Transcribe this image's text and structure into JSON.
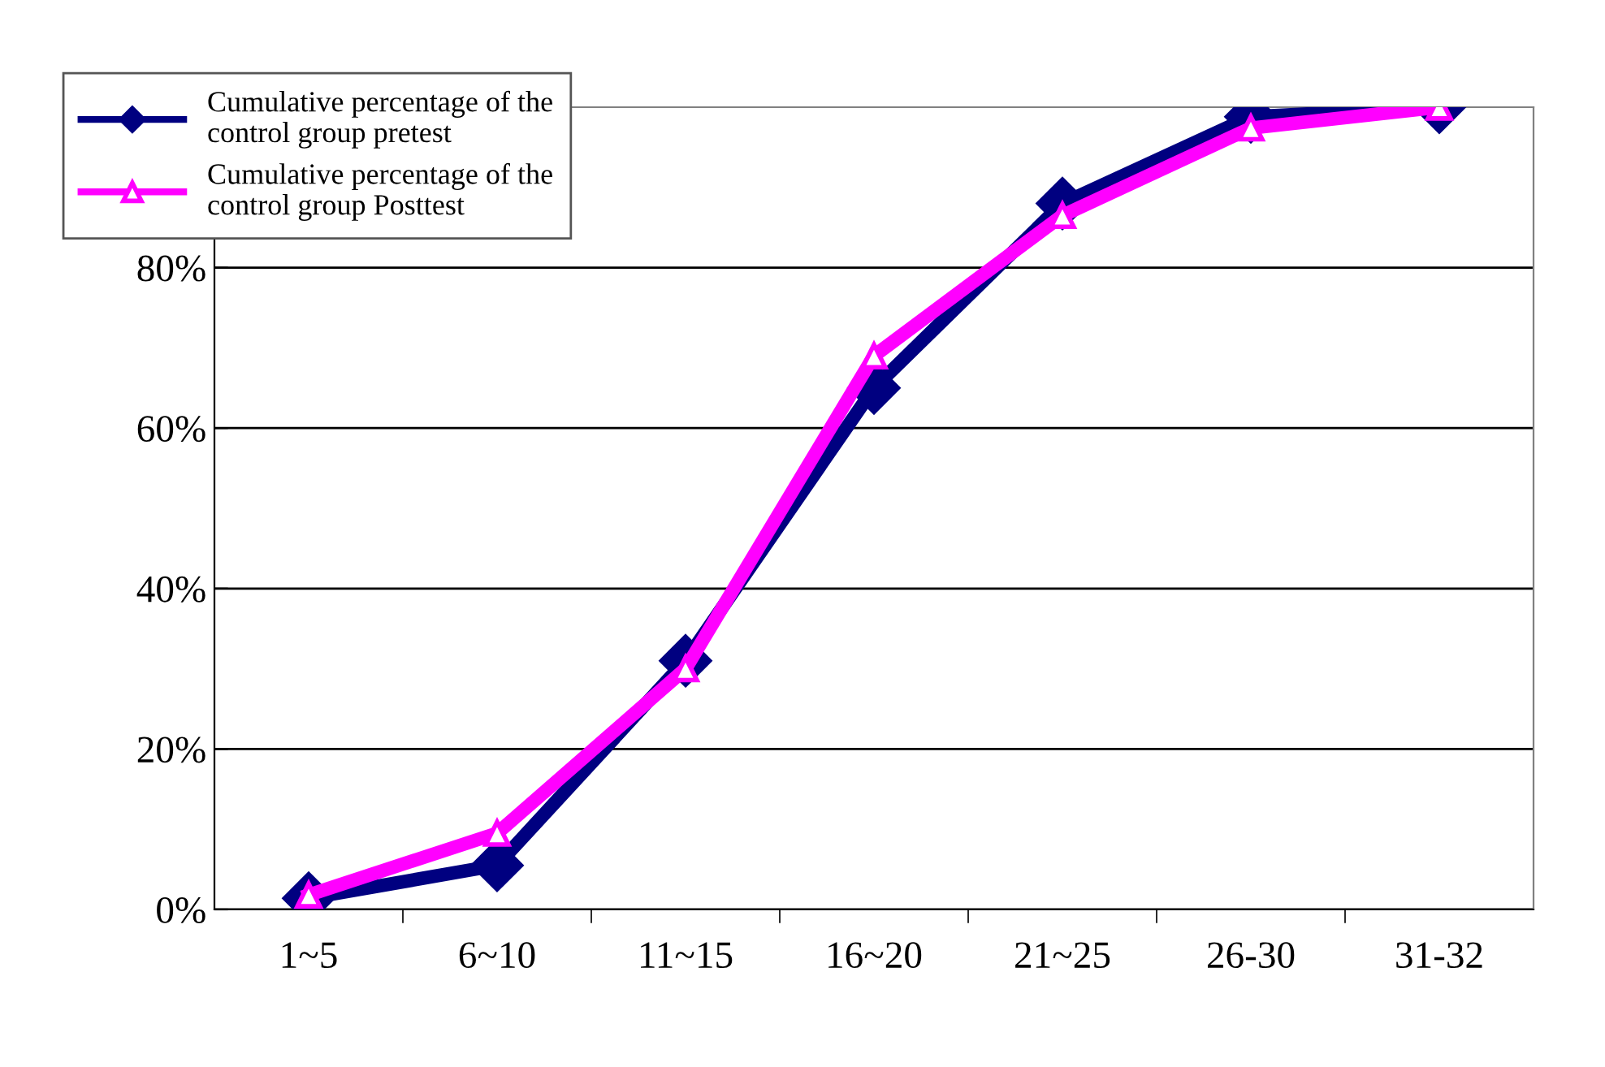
{
  "chart_data": {
    "type": "line",
    "categories": [
      "1~5",
      "6~10",
      "11~15",
      "16~20",
      "21~25",
      "26-30",
      "31-32"
    ],
    "series": [
      {
        "name": "Cumulative percentage of the\ncontrol group pretest",
        "color": "#000080",
        "marker": "diamond",
        "values": [
          1.4,
          5.5,
          31,
          65,
          88,
          98.8,
          100
        ]
      },
      {
        "name": "Cumulative percentage of the\ncontrol group Posttest",
        "color": "#ff00ff",
        "marker": "triangle",
        "values": [
          1.8,
          9.5,
          30,
          69,
          86.5,
          97.4,
          100
        ]
      }
    ],
    "ylim": [
      0,
      100
    ],
    "yticks": [
      {
        "value": 0,
        "label": "0%"
      },
      {
        "value": 20,
        "label": "20%"
      },
      {
        "value": 40,
        "label": "40%"
      },
      {
        "value": 60,
        "label": "60%"
      },
      {
        "value": 80,
        "label": "80%"
      }
    ],
    "grid": "y",
    "legend": "top left",
    "line_style": "solid"
  }
}
